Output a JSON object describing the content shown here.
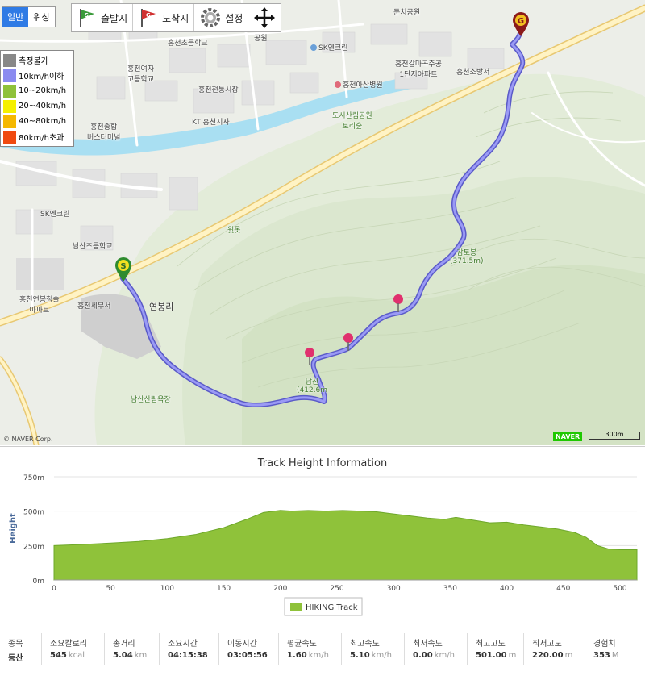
{
  "map_type": {
    "normal": "일반",
    "satellite": "위성",
    "active": "normal"
  },
  "toolbar": {
    "start": "출발지",
    "end": "도착지",
    "settings": "설정"
  },
  "legend": [
    {
      "label": "측정불가",
      "color": "#888888"
    },
    {
      "label": "10km/h이하",
      "color": "#8b8bf0"
    },
    {
      "label": "10~20km/h",
      "color": "#8fc23a"
    },
    {
      "label": "20~40km/h",
      "color": "#f5f000"
    },
    {
      "label": "40~80km/h",
      "color": "#f5b800"
    },
    {
      "label": "80km/h초과",
      "color": "#f04a10"
    }
  ],
  "map_labels": {
    "l1": "홍천여자",
    "l1b": "고등학교",
    "l2": "홍천초등학교",
    "l3": "홍천전통시장",
    "l4": "KT 홍천지사",
    "l5": "홍천종합",
    "l5b": "버스터미널",
    "l6": "SK엔크린",
    "l7": "홍천아산병원",
    "l8": "홍천갈마곡주공",
    "l8b": "1단지아파트",
    "l9": "홍천소방서",
    "l10": "도시산림공원",
    "l10b": "토리숲",
    "l11": "SK엔크린",
    "l12": "남산초등학교",
    "l13": "홍천연봉청솔",
    "l13b": "아파트",
    "l14": "홍천세무서",
    "l15": "연봉리",
    "l16": "윗못",
    "l17": "감토봉",
    "l17b": "(371.5m)",
    "l18": "남산",
    "l18b": "(412.6m",
    "l19": "남산산림욕장",
    "l20": "둔치공원",
    "l21": "공원"
  },
  "copyright": "© NAVER Corp.",
  "naver": "NAVER",
  "scale_label": "300m",
  "chart": {
    "title": "Track Height Information",
    "legend_label": "HIKING Track",
    "fill_color": "#8fc23a"
  },
  "chart_data": {
    "type": "area",
    "title": "Track Height Information",
    "xlabel": "",
    "ylabel": "Height",
    "xlim": [
      0,
      515
    ],
    "ylim": [
      0,
      750
    ],
    "x_ticks": [
      0,
      50,
      100,
      150,
      200,
      250,
      300,
      350,
      400,
      450,
      500
    ],
    "y_ticks": [
      "0m",
      "250m",
      "500m",
      "750m"
    ],
    "y_tick_values": [
      0,
      250,
      500,
      750
    ],
    "series": [
      {
        "name": "HIKING Track",
        "x": [
          0,
          25,
          50,
          75,
          100,
          125,
          150,
          170,
          185,
          200,
          210,
          225,
          240,
          255,
          270,
          285,
          300,
          315,
          330,
          345,
          355,
          370,
          385,
          400,
          415,
          430,
          445,
          460,
          470,
          480,
          490,
          500,
          515
        ],
        "y": [
          250,
          258,
          268,
          280,
          300,
          330,
          380,
          440,
          490,
          505,
          500,
          505,
          500,
          505,
          500,
          495,
          480,
          465,
          450,
          440,
          455,
          435,
          415,
          420,
          400,
          385,
          370,
          345,
          310,
          250,
          225,
          220,
          220
        ]
      }
    ]
  },
  "stats": [
    {
      "label": "종목",
      "value": "등산",
      "unit": ""
    },
    {
      "label": "소요칼로리",
      "value": "545",
      "unit": "kcal"
    },
    {
      "label": "총거리",
      "value": "5.04",
      "unit": "km"
    },
    {
      "label": "소요시간",
      "value": "04:15:38",
      "unit": ""
    },
    {
      "label": "이동시간",
      "value": "03:05:56",
      "unit": ""
    },
    {
      "label": "평균속도",
      "value": "1.60",
      "unit": "km/h"
    },
    {
      "label": "최고속도",
      "value": "5.10",
      "unit": "km/h"
    },
    {
      "label": "최저속도",
      "value": "0.00",
      "unit": "km/h"
    },
    {
      "label": "최고고도",
      "value": "501.00",
      "unit": "m"
    },
    {
      "label": "최저고도",
      "value": "220.00",
      "unit": "m"
    },
    {
      "label": "경험치",
      "value": "353",
      "unit": "M"
    }
  ]
}
